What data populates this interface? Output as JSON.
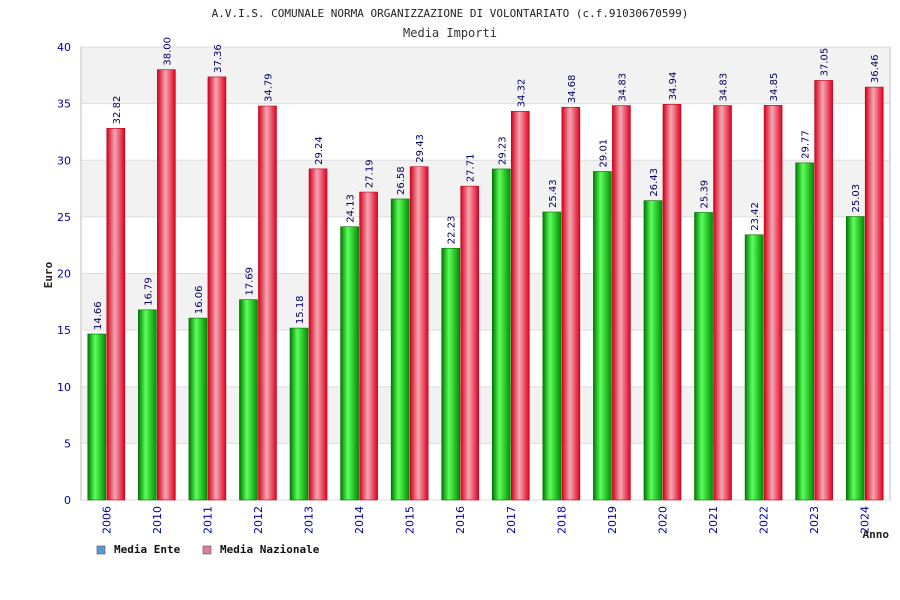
{
  "chart_data": {
    "type": "bar",
    "title": "A.V.I.S. COMUNALE NORMA ORGANIZZAZIONE DI VOLONTARIATO (c.f.91030670599)",
    "subtitle": "Media Importi",
    "xlabel": "Anno",
    "ylabel": "Euro",
    "ylim": [
      0,
      40
    ],
    "yticks": [
      0,
      5,
      10,
      15,
      20,
      25,
      30,
      35,
      40
    ],
    "grid": true,
    "legend_position": "bottom-left",
    "categories": [
      "2006",
      "2010",
      "2011",
      "2012",
      "2013",
      "2014",
      "2015",
      "2016",
      "2017",
      "2018",
      "2019",
      "2020",
      "2021",
      "2022",
      "2023",
      "2024"
    ],
    "series": [
      {
        "name": "Media Ente",
        "legend_color": "#5b9bd5",
        "bar_color": "#00b000",
        "values": [
          14.66,
          16.79,
          16.06,
          17.69,
          15.18,
          24.13,
          26.58,
          22.23,
          29.23,
          25.43,
          29.01,
          26.43,
          25.39,
          23.42,
          29.77,
          25.03
        ],
        "labels": [
          "14.66",
          "16.79",
          "16.06",
          "17.69",
          "15.18",
          "24.13",
          "26.58",
          "22.23",
          "29.23",
          "25.43",
          "29.01",
          "26.43",
          "25.39",
          "23.42",
          "29.77",
          "25.03"
        ]
      },
      {
        "name": "Media Nazionale",
        "legend_color": "#e07aa8",
        "bar_color": "#e8102a",
        "values": [
          32.82,
          38.0,
          37.36,
          34.79,
          29.24,
          27.19,
          29.43,
          27.71,
          34.32,
          34.68,
          34.83,
          34.94,
          34.83,
          34.85,
          37.05,
          36.46
        ],
        "labels": [
          "32.82",
          "38.00",
          "37.36",
          "34.79",
          "29.24",
          "27.19",
          "29.43",
          "27.71",
          "34.32",
          "34.68",
          "34.83",
          "34.94",
          "34.83",
          "34.85",
          "37.05",
          "36.46"
        ]
      }
    ]
  }
}
